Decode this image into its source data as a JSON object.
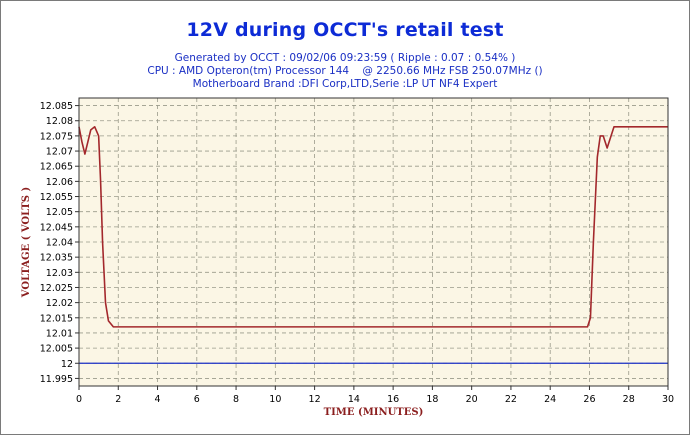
{
  "title": "12V during OCCT's retail test",
  "subtitle_lines": [
    "Generated by OCCT : 09/02/06 09:23:59 ( Ripple : 0.07 : 0.54% )",
    "CPU : AMD Opteron(tm) Processor 144    @ 2250.66 MHz FSB 250.07MHz ()",
    "Motherboard Brand :DFI Corp,LTD,Serie :LP UT NF4 Expert"
  ],
  "colors": {
    "title": "#0d2bd6",
    "subtitle": "#1a2fc4",
    "plot_background": "#fbf6e5",
    "grid": "#9a9a8a",
    "voltage_line": "#a3282c",
    "reference_line": "#1a2fc4",
    "axis_label": "#8b1e1e"
  },
  "chart_data": {
    "type": "line",
    "xlabel": "TIME (MINUTES)",
    "ylabel": "VOLTAGE ( VOLTS )",
    "xlim": [
      0,
      30
    ],
    "ylim": [
      11.9925,
      12.0875
    ],
    "x_ticks": [
      0,
      2,
      4,
      6,
      8,
      10,
      12,
      14,
      16,
      18,
      20,
      22,
      24,
      26,
      28,
      30
    ],
    "y_ticks": [
      "12.085",
      "12.08",
      "12.075",
      "12.07",
      "12.065",
      "12.06",
      "12.055",
      "12.05",
      "12.045",
      "12.04",
      "12.035",
      "12.03",
      "12.025",
      "12.02",
      "12.015",
      "12.01",
      "12.005",
      "12",
      "11.995"
    ],
    "grid": true,
    "legend": "none",
    "series": [
      {
        "x": [
          0,
          0.15,
          0.3,
          0.45,
          0.6,
          0.8,
          1.0,
          1.1,
          1.2,
          1.35,
          1.5,
          1.75,
          2.0,
          4,
          8,
          12,
          16,
          20,
          24,
          25.9,
          26.05,
          26.2,
          26.4,
          26.55,
          26.7,
          26.9,
          27.1,
          27.25,
          27.5,
          28,
          30
        ],
        "y": [
          12.078,
          12.073,
          12.069,
          12.073,
          12.077,
          12.078,
          12.075,
          12.06,
          12.04,
          12.02,
          12.014,
          12.012,
          12.012,
          12.012,
          12.012,
          12.012,
          12.012,
          12.012,
          12.012,
          12.012,
          12.015,
          12.04,
          12.068,
          12.075,
          12.075,
          12.071,
          12.075,
          12.078,
          12.078,
          12.078,
          12.078
        ]
      },
      {
        "x": [
          0,
          30
        ],
        "y": [
          12.0,
          12.0
        ]
      }
    ]
  }
}
